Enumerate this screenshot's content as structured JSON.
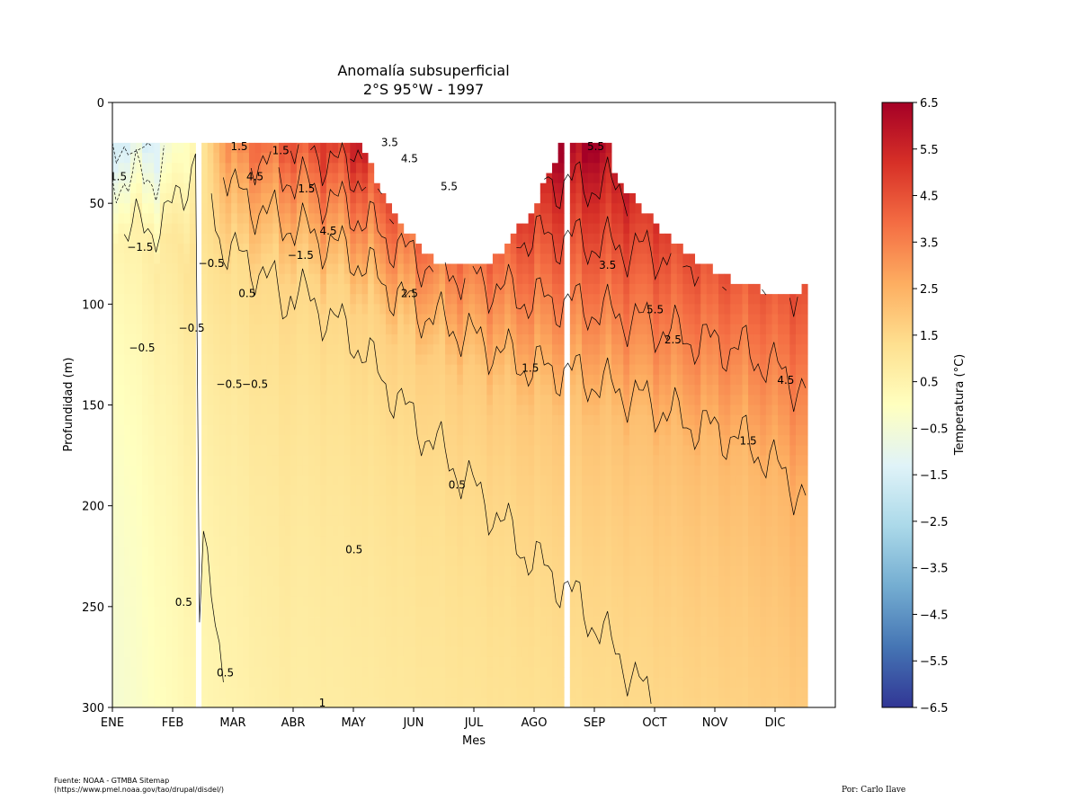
{
  "chart_data": {
    "type": "heatmap",
    "title": "Anomalía subsuperficial",
    "subtitle": "2°S 95°W - 1997",
    "xlabel": "Mes",
    "ylabel": "Profundidad (m)",
    "x_ticks": [
      "ENE",
      "FEB",
      "MAR",
      "ABR",
      "MAY",
      "JUN",
      "JUL",
      "AGO",
      "SEP",
      "OCT",
      "NOV",
      "DIC"
    ],
    "y_ticks": [
      0,
      50,
      100,
      150,
      200,
      250,
      300
    ],
    "ylim": [
      300,
      0
    ],
    "x_range_days": [
      0,
      365
    ],
    "data_extent_days": [
      0,
      351
    ],
    "data_top_depth_m": 20,
    "missing_columns_day": [
      43,
      228
    ],
    "colorbar": {
      "label": "Temperatura (°C)",
      "range": [
        -6.5,
        6.5
      ],
      "ticks": [
        "6.5",
        "5.5",
        "4.5",
        "3.5",
        "2.5",
        "1.5",
        "0.5",
        "−0.5",
        "−1.5",
        "−2.5",
        "−3.5",
        "−4.5",
        "−5.5",
        "−6.5"
      ],
      "colormap": "RdYlBu_r"
    },
    "surface_layer_profile": {
      "comment_days": [
        0,
        20,
        43,
        60,
        90,
        120,
        150,
        170,
        190,
        210,
        228,
        245,
        265,
        290,
        320,
        340,
        351
      ],
      "top_anomaly_c": [
        -1.5,
        -1.5,
        0.5,
        3.5,
        4.5,
        5.5,
        6.5,
        6.5,
        6.5,
        6.5,
        6.5,
        6.5,
        6.5,
        6.5,
        6.5,
        6.5,
        6.5
      ],
      "warm_bottom_depth_m": [
        60,
        70,
        75,
        80,
        85,
        95,
        120,
        130,
        140,
        150,
        150,
        155,
        160,
        170,
        175,
        190,
        200
      ]
    },
    "contour_labels": [
      {
        "text": "3.5",
        "day": 140,
        "depth": 20
      },
      {
        "text": "4.5",
        "day": 150,
        "depth": 28
      },
      {
        "text": "5.5",
        "day": 170,
        "depth": 42
      },
      {
        "text": "1.5",
        "day": 64,
        "depth": 22
      },
      {
        "text": "1.5",
        "day": 85,
        "depth": 24
      },
      {
        "text": "4.5",
        "day": 72,
        "depth": 37
      },
      {
        "text": "1.5",
        "day": 98,
        "depth": 43
      },
      {
        "text": "5.5",
        "day": 244,
        "depth": 22
      },
      {
        "text": "1.5",
        "day": 3,
        "depth": 37
      },
      {
        "text": "−1.5",
        "day": 14,
        "depth": 72
      },
      {
        "text": "−0.5",
        "day": 40,
        "depth": 112
      },
      {
        "text": "−0.5",
        "day": 15,
        "depth": 122
      },
      {
        "text": "−0.5",
        "day": 50,
        "depth": 80
      },
      {
        "text": "−0.5",
        "day": 59,
        "depth": 140
      },
      {
        "text": "−0.5",
        "day": 72,
        "depth": 140
      },
      {
        "text": "0.5",
        "day": 68,
        "depth": 95
      },
      {
        "text": "−1.5",
        "day": 95,
        "depth": 76
      },
      {
        "text": "4.5",
        "day": 109,
        "depth": 64
      },
      {
        "text": "2.5",
        "day": 150,
        "depth": 95
      },
      {
        "text": "1.5",
        "day": 211,
        "depth": 132
      },
      {
        "text": "3.5",
        "day": 250,
        "depth": 81
      },
      {
        "text": "5.5",
        "day": 274,
        "depth": 103
      },
      {
        "text": "2.5",
        "day": 283,
        "depth": 118
      },
      {
        "text": "4.5",
        "day": 340,
        "depth": 138
      },
      {
        "text": "1.5",
        "day": 321,
        "depth": 168
      },
      {
        "text": "0.5",
        "day": 174,
        "depth": 190
      },
      {
        "text": "0.5",
        "day": 122,
        "depth": 222
      },
      {
        "text": "0.5",
        "day": 36,
        "depth": 248
      },
      {
        "text": "0.5",
        "day": 57,
        "depth": 283
      },
      {
        "text": "1",
        "day": 106,
        "depth": 298
      }
    ]
  },
  "footer": {
    "source_line1": "Fuente: NOAA - GTMBA Sitemap",
    "source_line2": "(https://www.pmel.noaa.gov/tao/drupal/disdel/)",
    "author": "Por: Carlo Ilave"
  }
}
